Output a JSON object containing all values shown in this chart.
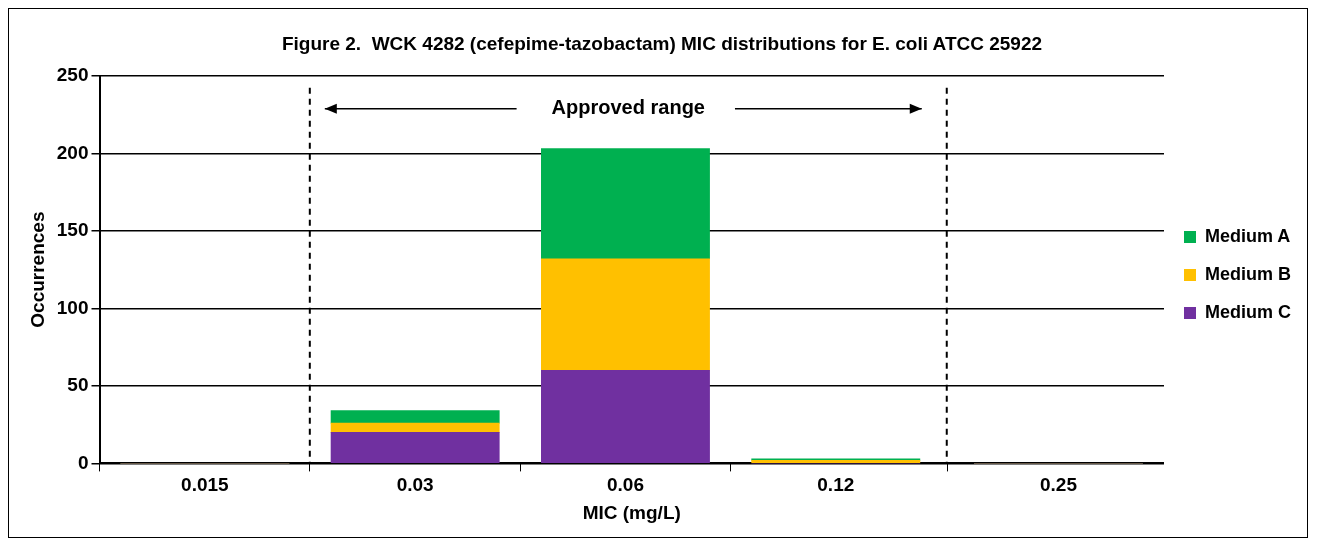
{
  "chart_data": {
    "type": "bar",
    "title": "Figure 2.  WCK 4282 (cefepime-tazobactam) MIC distributions for E. coli ATCC 25922",
    "xlabel": "MIC (mg/L)",
    "ylabel": "Occurrences",
    "x": [
      0.015,
      0.03,
      0.06,
      0.12,
      0.25
    ],
    "series": [
      {
        "name": "Medium C",
        "color": "#7030a0",
        "values": [
          0,
          20,
          60,
          0,
          0
        ]
      },
      {
        "name": "Medium B",
        "color": "#ffc000",
        "values": [
          0,
          6,
          72,
          2,
          0
        ]
      },
      {
        "name": "Medium A",
        "color": "#00b050",
        "values": [
          0,
          8,
          71,
          1,
          0
        ]
      }
    ],
    "stacked": true,
    "log": "x",
    "xlim": [
      0.0106,
      0.354
    ],
    "xticks": [
      0.015,
      0.03,
      0.06,
      0.12,
      0.25
    ],
    "ylim": [
      0,
      250
    ],
    "yticks": [
      0,
      50,
      100,
      150,
      200,
      250
    ],
    "grid": "y",
    "legend": "right",
    "ref_lines": [
      {
        "axis": "x",
        "value": 0.0212,
        "line_style": "dashed"
      },
      {
        "axis": "x",
        "value": 0.173,
        "line_style": "dashed"
      }
    ],
    "annotations": [
      "Approved range"
    ]
  }
}
